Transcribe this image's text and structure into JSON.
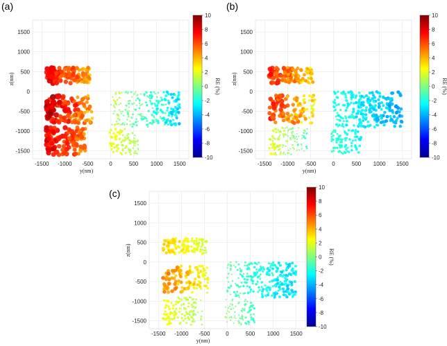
{
  "chart_data": [
    {
      "panel": "(a)",
      "type": "scatter",
      "xlabel": "y(nm)",
      "ylabel": "z(nm)",
      "colorbar_label": "RE (%)",
      "xlim": [
        -1700,
        1700
      ],
      "ylim": [
        -1700,
        1800
      ],
      "xticks": [
        -1500,
        -1000,
        -500,
        0,
        500,
        1000,
        1500
      ],
      "yticks": [
        1500,
        1000,
        500,
        0,
        -500,
        -1000,
        -1500
      ],
      "colorbar_ticks": [
        10,
        8,
        6,
        4,
        2,
        0,
        -2,
        -4,
        -6,
        -8,
        -10
      ],
      "clim": [
        -10,
        10
      ],
      "colormap": "jet",
      "grid": true,
      "clusters": [
        {
          "region": "upper-left",
          "y_range": [
            -1400,
            -450
          ],
          "z_range": [
            200,
            600
          ],
          "RE_range": [
            3,
            9
          ]
        },
        {
          "region": "middle-left",
          "y_range": [
            -1400,
            -400
          ],
          "z_range": [
            -800,
            -100
          ],
          "RE_range": [
            3,
            10
          ]
        },
        {
          "region": "lower-left",
          "y_range": [
            -1400,
            -550
          ],
          "z_range": [
            -1600,
            -900
          ],
          "RE_range": [
            4,
            9
          ]
        },
        {
          "region": "center-right",
          "y_range": [
            0,
            1500
          ],
          "z_range": [
            -900,
            0
          ],
          "RE_range": [
            -4,
            2
          ]
        },
        {
          "region": "center-lower",
          "y_range": [
            -50,
            600
          ],
          "z_range": [
            -1600,
            -950
          ],
          "RE_range": [
            0,
            3
          ]
        }
      ]
    },
    {
      "panel": "(b)",
      "type": "scatter",
      "xlabel": "y(nm)",
      "ylabel": "z(nm)",
      "colorbar_label": "RE (%)",
      "xlim": [
        -1700,
        1700
      ],
      "ylim": [
        -1700,
        1800
      ],
      "xticks": [
        -1500,
        -1000,
        -500,
        0,
        500,
        1000,
        1500
      ],
      "yticks": [
        1500,
        1000,
        500,
        0,
        -500,
        -1000,
        -1500
      ],
      "colorbar_ticks": [
        10,
        8,
        6,
        4,
        2,
        0,
        -2,
        -4,
        -6,
        -8,
        -10
      ],
      "clim": [
        -10,
        10
      ],
      "colormap": "jet",
      "grid": true,
      "clusters": [
        {
          "region": "upper-left",
          "y_range": [
            -1400,
            -450
          ],
          "z_range": [
            200,
            600
          ],
          "RE_range": [
            2,
            8
          ]
        },
        {
          "region": "middle-left",
          "y_range": [
            -1400,
            -400
          ],
          "z_range": [
            -800,
            -100
          ],
          "RE_range": [
            1,
            8
          ]
        },
        {
          "region": "lower-left",
          "y_range": [
            -1400,
            -550
          ],
          "z_range": [
            -1600,
            -900
          ],
          "RE_range": [
            -2,
            3
          ]
        },
        {
          "region": "center-right",
          "y_range": [
            0,
            1500
          ],
          "z_range": [
            -900,
            0
          ],
          "RE_range": [
            -5,
            -1
          ]
        },
        {
          "region": "center-lower",
          "y_range": [
            -50,
            600
          ],
          "z_range": [
            -1600,
            -950
          ],
          "RE_range": [
            -3,
            -1
          ]
        }
      ]
    },
    {
      "panel": "(c)",
      "type": "scatter",
      "xlabel": "y(nm)",
      "ylabel": "z(nm)",
      "colorbar_label": "RE (%)",
      "xlim": [
        -1700,
        1700
      ],
      "ylim": [
        -1700,
        1800
      ],
      "xticks": [
        -1500,
        -1000,
        -500,
        0,
        500,
        1000,
        1500
      ],
      "yticks": [
        1500,
        1000,
        500,
        0,
        -500,
        -1000,
        -1500
      ],
      "colorbar_ticks": [
        10,
        8,
        6,
        4,
        2,
        0,
        -2,
        -4,
        -6,
        -8,
        -10
      ],
      "clim": [
        -10,
        10
      ],
      "colormap": "jet",
      "grid": true,
      "clusters": [
        {
          "region": "upper-left",
          "y_range": [
            -1400,
            -450
          ],
          "z_range": [
            200,
            600
          ],
          "RE_range": [
            1,
            4
          ]
        },
        {
          "region": "middle-left",
          "y_range": [
            -1400,
            -400
          ],
          "z_range": [
            -800,
            -100
          ],
          "RE_range": [
            1,
            6
          ]
        },
        {
          "region": "lower-left",
          "y_range": [
            -1400,
            -550
          ],
          "z_range": [
            -1600,
            -900
          ],
          "RE_range": [
            0,
            3
          ]
        },
        {
          "region": "center-right",
          "y_range": [
            0,
            1500
          ],
          "z_range": [
            -900,
            0
          ],
          "RE_range": [
            -4,
            0
          ]
        },
        {
          "region": "center-lower",
          "y_range": [
            -50,
            600
          ],
          "z_range": [
            -1600,
            -950
          ],
          "RE_range": [
            -2,
            1
          ]
        }
      ]
    }
  ]
}
